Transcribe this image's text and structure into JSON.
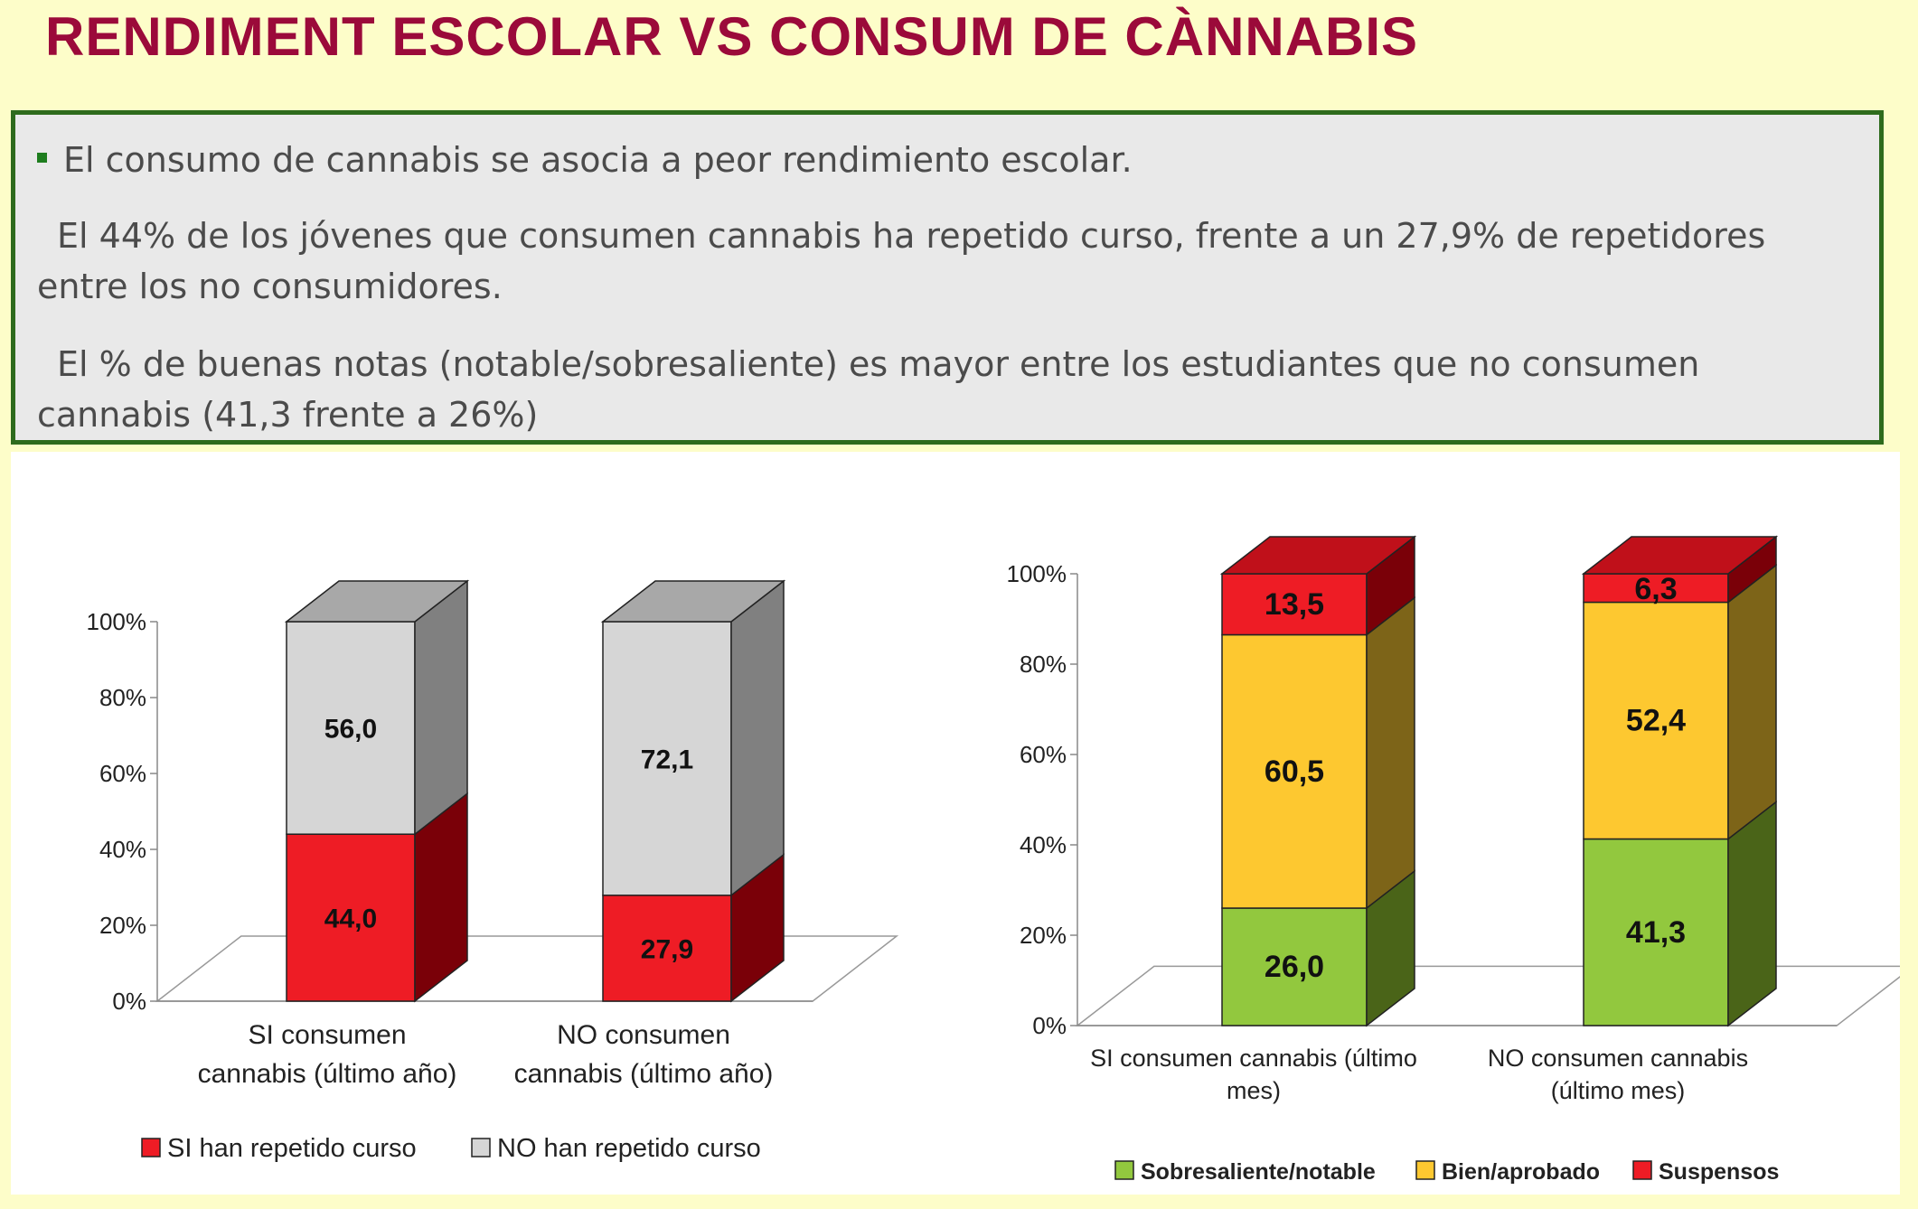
{
  "title": "RENDIMENT ESCOLAR VS CONSUM DE CÀNNABIS",
  "text_box": {
    "bullet": "El consumo de cannabis se asocia a peor rendimiento escolar.",
    "paragraph_2": "El 44% de los jóvenes que consumen cannabis ha repetido curso,  frente a un 27,9% de repetidores entre  los no consumidores.",
    "paragraph_3": "El % de buenas notas (notable/sobresaliente) es mayor entre los estudiantes que no consumen cannabis (41,3 frente a 26%)"
  },
  "chart_data": [
    {
      "type": "bar",
      "stacked": true,
      "three_d": true,
      "categories": [
        [
          "SI consumen",
          "cannabis (último año)"
        ],
        [
          "NO consumen",
          "cannabis (último año)"
        ]
      ],
      "series": [
        {
          "name": "SI han repetido curso",
          "values": [
            44.0,
            27.9
          ],
          "labels": [
            "44,0",
            "27,9"
          ],
          "color": "#ee1c25",
          "side": "#7a0008",
          "top": "#b3000c"
        },
        {
          "name": "NO han repetido curso",
          "values": [
            56.0,
            72.1
          ],
          "labels": [
            "56,0",
            "72,1"
          ],
          "color": "#d6d6d6",
          "side": "#808080",
          "top": "#a8a8a8"
        }
      ],
      "yticks": [
        "0%",
        "20%",
        "40%",
        "60%",
        "80%",
        "100%"
      ],
      "ylim": [
        0,
        100
      ],
      "legend": "bottom"
    },
    {
      "type": "bar",
      "stacked": true,
      "three_d": true,
      "categories": [
        [
          "SI consumen cannabis (último",
          "mes)"
        ],
        [
          "NO consumen cannabis",
          "(último mes)"
        ]
      ],
      "series": [
        {
          "name": "Sobresaliente/notable",
          "values": [
            26.0,
            41.3
          ],
          "labels": [
            "26,0",
            "41,3"
          ],
          "color": "#92c83e",
          "side": "#4a6418",
          "top": "#6f9a27"
        },
        {
          "name": "Bien/aprobado",
          "values": [
            60.5,
            52.4
          ],
          "labels": [
            "60,5",
            "52,4"
          ],
          "color": "#fdc830",
          "side": "#7d6418",
          "top": "#c99a1a"
        },
        {
          "name": "Suspensos",
          "values": [
            13.5,
            6.3
          ],
          "labels": [
            "13,5",
            "6,3"
          ],
          "color": "#ee1c25",
          "side": "#7a0008",
          "top": "#c0101a"
        }
      ],
      "yticks": [
        "0%",
        "20%",
        "40%",
        "60%",
        "80%",
        "100%"
      ],
      "ylim": [
        0,
        100
      ],
      "legend": "bottom"
    }
  ]
}
